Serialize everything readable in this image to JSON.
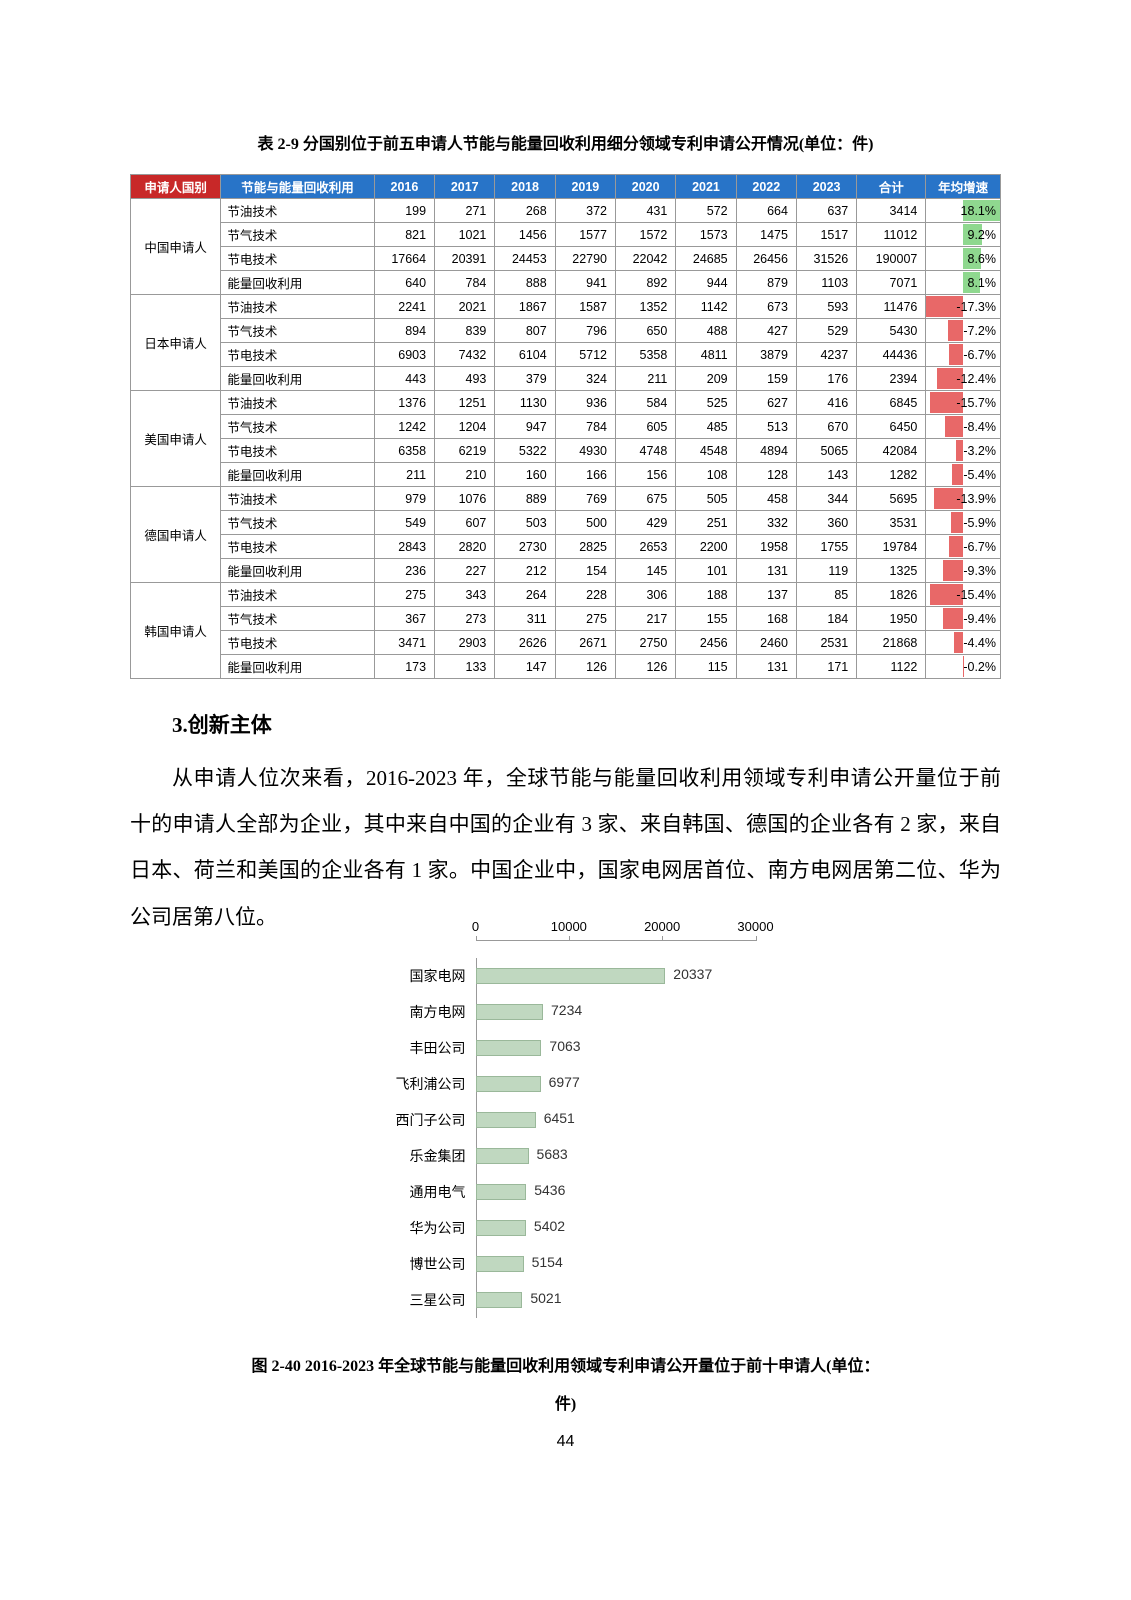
{
  "table": {
    "title": "表 2-9 分国别位于前五申请人节能与能量回收利用细分领域专利申请公开情况(单位：件)",
    "header": [
      "申请人国别",
      "节能与能量回收利用",
      "2016",
      "2017",
      "2018",
      "2019",
      "2020",
      "2021",
      "2022",
      "2023",
      "合计",
      "年均增速"
    ],
    "countries": [
      {
        "name": "中国申请人",
        "rows": [
          {
            "tech": "节油技术",
            "vals": [
              "199",
              "271",
              "268",
              "372",
              "431",
              "572",
              "664",
              "637",
              "3414"
            ],
            "growth": "18.1%",
            "bar_pct": 100,
            "bar_side": "right",
            "bar_color": "#8fd88f"
          },
          {
            "tech": "节气技术",
            "vals": [
              "821",
              "1021",
              "1456",
              "1577",
              "1572",
              "1573",
              "1475",
              "1517",
              "11012"
            ],
            "growth": "9.2%",
            "bar_pct": 51,
            "bar_side": "right",
            "bar_color": "#8fd88f"
          },
          {
            "tech": "节电技术",
            "vals": [
              "17664",
              "20391",
              "24453",
              "22790",
              "22042",
              "24685",
              "26456",
              "31526",
              "190007"
            ],
            "growth": "8.6%",
            "bar_pct": 48,
            "bar_side": "right",
            "bar_color": "#8fd88f"
          },
          {
            "tech": "能量回收利用",
            "vals": [
              "640",
              "784",
              "888",
              "941",
              "892",
              "944",
              "879",
              "1103",
              "7071"
            ],
            "growth": "8.1%",
            "bar_pct": 45,
            "bar_side": "right",
            "bar_color": "#8fd88f"
          }
        ]
      },
      {
        "name": "日本申请人",
        "rows": [
          {
            "tech": "节油技术",
            "vals": [
              "2241",
              "2021",
              "1867",
              "1587",
              "1352",
              "1142",
              "673",
              "593",
              "11476"
            ],
            "growth": "-17.3%",
            "bar_pct": 100,
            "bar_side": "left",
            "bar_color": "#e86868"
          },
          {
            "tech": "节气技术",
            "vals": [
              "894",
              "839",
              "807",
              "796",
              "650",
              "488",
              "427",
              "529",
              "5430"
            ],
            "growth": "-7.2%",
            "bar_pct": 42,
            "bar_side": "left",
            "bar_color": "#e86868"
          },
          {
            "tech": "节电技术",
            "vals": [
              "6903",
              "7432",
              "6104",
              "5712",
              "5358",
              "4811",
              "3879",
              "4237",
              "44436"
            ],
            "growth": "-6.7%",
            "bar_pct": 39,
            "bar_side": "left",
            "bar_color": "#e86868"
          },
          {
            "tech": "能量回收利用",
            "vals": [
              "443",
              "493",
              "379",
              "324",
              "211",
              "209",
              "159",
              "176",
              "2394"
            ],
            "growth": "-12.4%",
            "bar_pct": 72,
            "bar_side": "left",
            "bar_color": "#e86868"
          }
        ]
      },
      {
        "name": "美国申请人",
        "rows": [
          {
            "tech": "节油技术",
            "vals": [
              "1376",
              "1251",
              "1130",
              "936",
              "584",
              "525",
              "627",
              "416",
              "6845"
            ],
            "growth": "-15.7%",
            "bar_pct": 91,
            "bar_side": "left",
            "bar_color": "#e86868"
          },
          {
            "tech": "节气技术",
            "vals": [
              "1242",
              "1204",
              "947",
              "784",
              "605",
              "485",
              "513",
              "670",
              "6450"
            ],
            "growth": "-8.4%",
            "bar_pct": 49,
            "bar_side": "left",
            "bar_color": "#e86868"
          },
          {
            "tech": "节电技术",
            "vals": [
              "6358",
              "6219",
              "5322",
              "4930",
              "4748",
              "4548",
              "4894",
              "5065",
              "42084"
            ],
            "growth": "-3.2%",
            "bar_pct": 19,
            "bar_side": "left",
            "bar_color": "#e86868"
          },
          {
            "tech": "能量回收利用",
            "vals": [
              "211",
              "210",
              "160",
              "166",
              "156",
              "108",
              "128",
              "143",
              "1282"
            ],
            "growth": "-5.4%",
            "bar_pct": 31,
            "bar_side": "left",
            "bar_color": "#e86868"
          }
        ]
      },
      {
        "name": "德国申请人",
        "rows": [
          {
            "tech": "节油技术",
            "vals": [
              "979",
              "1076",
              "889",
              "769",
              "675",
              "505",
              "458",
              "344",
              "5695"
            ],
            "growth": "-13.9%",
            "bar_pct": 80,
            "bar_side": "left",
            "bar_color": "#e86868"
          },
          {
            "tech": "节气技术",
            "vals": [
              "549",
              "607",
              "503",
              "500",
              "429",
              "251",
              "332",
              "360",
              "3531"
            ],
            "growth": "-5.9%",
            "bar_pct": 34,
            "bar_side": "left",
            "bar_color": "#e86868"
          },
          {
            "tech": "节电技术",
            "vals": [
              "2843",
              "2820",
              "2730",
              "2825",
              "2653",
              "2200",
              "1958",
              "1755",
              "19784"
            ],
            "growth": "-6.7%",
            "bar_pct": 39,
            "bar_side": "left",
            "bar_color": "#e86868"
          },
          {
            "tech": "能量回收利用",
            "vals": [
              "236",
              "227",
              "212",
              "154",
              "145",
              "101",
              "131",
              "119",
              "1325"
            ],
            "growth": "-9.3%",
            "bar_pct": 54,
            "bar_side": "left",
            "bar_color": "#e86868"
          }
        ]
      },
      {
        "name": "韩国申请人",
        "rows": [
          {
            "tech": "节油技术",
            "vals": [
              "275",
              "343",
              "264",
              "228",
              "306",
              "188",
              "137",
              "85",
              "1826"
            ],
            "growth": "-15.4%",
            "bar_pct": 89,
            "bar_side": "left",
            "bar_color": "#e86868"
          },
          {
            "tech": "节气技术",
            "vals": [
              "367",
              "273",
              "311",
              "275",
              "217",
              "155",
              "168",
              "184",
              "1950"
            ],
            "growth": "-9.4%",
            "bar_pct": 54,
            "bar_side": "left",
            "bar_color": "#e86868"
          },
          {
            "tech": "节电技术",
            "vals": [
              "3471",
              "2903",
              "2626",
              "2671",
              "2750",
              "2456",
              "2460",
              "2531",
              "21868"
            ],
            "growth": "-4.4%",
            "bar_pct": 25,
            "bar_side": "left",
            "bar_color": "#e86868"
          },
          {
            "tech": "能量回收利用",
            "vals": [
              "173",
              "133",
              "147",
              "126",
              "126",
              "115",
              "131",
              "171",
              "1122"
            ],
            "growth": "-0.2%",
            "bar_pct": 1,
            "bar_side": "left",
            "bar_color": "#e86868"
          }
        ]
      }
    ]
  },
  "section_heading": "3.创新主体",
  "body_text": "从申请人位次来看，2016-2023 年，全球节能与能量回收利用领域专利申请公开量位于前十的申请人全部为企业，其中来自中国的企业有 3 家、来自韩国、德国的企业各有 2 家，来自日本、荷兰和美国的企业各有 1 家。中国企业中，国家电网居首位、南方电网居第二位、华为公司居第八位。",
  "chart": {
    "x_ticks": [
      0,
      10000,
      20000,
      30000
    ],
    "x_max": 30000,
    "track_width": 280,
    "bar_color": "#c0d8c0",
    "items": [
      {
        "name": "国家电网",
        "value": 20337
      },
      {
        "name": "南方电网",
        "value": 7234
      },
      {
        "name": "丰田公司",
        "value": 7063
      },
      {
        "name": "飞利浦公司",
        "value": 6977
      },
      {
        "name": "西门子公司",
        "value": 6451
      },
      {
        "name": "乐金集团",
        "value": 5683
      },
      {
        "name": "通用电气",
        "value": 5436
      },
      {
        "name": "华为公司",
        "value": 5402
      },
      {
        "name": "博世公司",
        "value": 5154
      },
      {
        "name": "三星公司",
        "value": 5021
      }
    ]
  },
  "figure_caption_1": "图 2-40 2016-2023 年全球节能与能量回收利用领域专利申请公开量位于前十申请人(单位：",
  "figure_caption_2": "件)",
  "page_number": "44"
}
